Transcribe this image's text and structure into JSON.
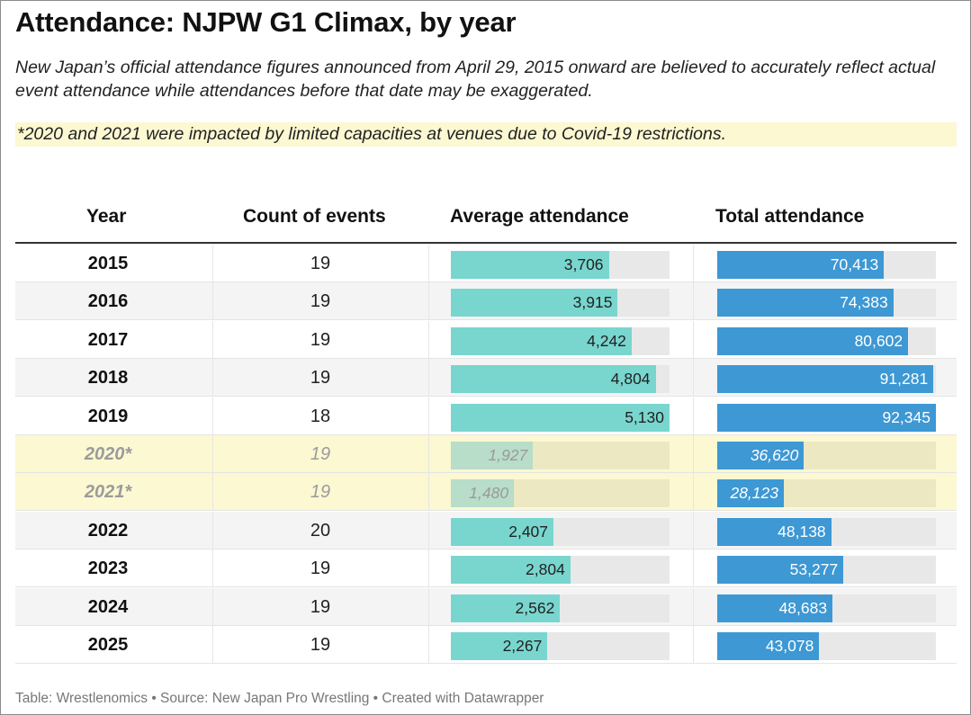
{
  "title": "Attendance: NJPW G1 Climax, by year",
  "description": "New Japan’s official attendance figures announced from April 29, 2015 onward are believed to accurately reflect actual event attendance while attendances before that date may be exaggerated.",
  "note": "*2020 and 2021 were impacted by limited capacities at venues due to Covid-19 restrictions.",
  "columns": {
    "year": "Year",
    "count": "Count of events",
    "average": "Average attendance",
    "total": "Total attendance"
  },
  "colors": {
    "average_bar": "#78d6cf",
    "total_bar": "#3d98d4",
    "highlight_row": "#fbf8d2"
  },
  "chart_data": {
    "type": "table",
    "average_scale_max": 5130,
    "total_scale_max": 92345,
    "rows": [
      {
        "year": "2015",
        "count": "19",
        "average": 3706,
        "average_label": "3,706",
        "total": 70413,
        "total_label": "70,413",
        "highlight": false
      },
      {
        "year": "2016",
        "count": "19",
        "average": 3915,
        "average_label": "3,915",
        "total": 74383,
        "total_label": "74,383",
        "highlight": false
      },
      {
        "year": "2017",
        "count": "19",
        "average": 4242,
        "average_label": "4,242",
        "total": 80602,
        "total_label": "80,602",
        "highlight": false
      },
      {
        "year": "2018",
        "count": "19",
        "average": 4804,
        "average_label": "4,804",
        "total": 91281,
        "total_label": "91,281",
        "highlight": false
      },
      {
        "year": "2019",
        "count": "18",
        "average": 5130,
        "average_label": "5,130",
        "total": 92345,
        "total_label": "92,345",
        "highlight": false
      },
      {
        "year": "2020*",
        "count": "19",
        "average": 1927,
        "average_label": "1,927",
        "total": 36620,
        "total_label": "36,620",
        "highlight": true
      },
      {
        "year": "2021*",
        "count": "19",
        "average": 1480,
        "average_label": "1,480",
        "total": 28123,
        "total_label": "28,123",
        "highlight": true
      },
      {
        "year": "2022",
        "count": "20",
        "average": 2407,
        "average_label": "2,407",
        "total": 48138,
        "total_label": "48,138",
        "highlight": false
      },
      {
        "year": "2023",
        "count": "19",
        "average": 2804,
        "average_label": "2,804",
        "total": 53277,
        "total_label": "53,277",
        "highlight": false
      },
      {
        "year": "2024",
        "count": "19",
        "average": 2562,
        "average_label": "2,562",
        "total": 48683,
        "total_label": "48,683",
        "highlight": false
      },
      {
        "year": "2025",
        "count": "19",
        "average": 2267,
        "average_label": "2,267",
        "total": 43078,
        "total_label": "43,078",
        "highlight": false
      }
    ]
  },
  "footer": "Table: Wrestlenomics • Source: New Japan Pro Wrestling • Created with Datawrapper"
}
